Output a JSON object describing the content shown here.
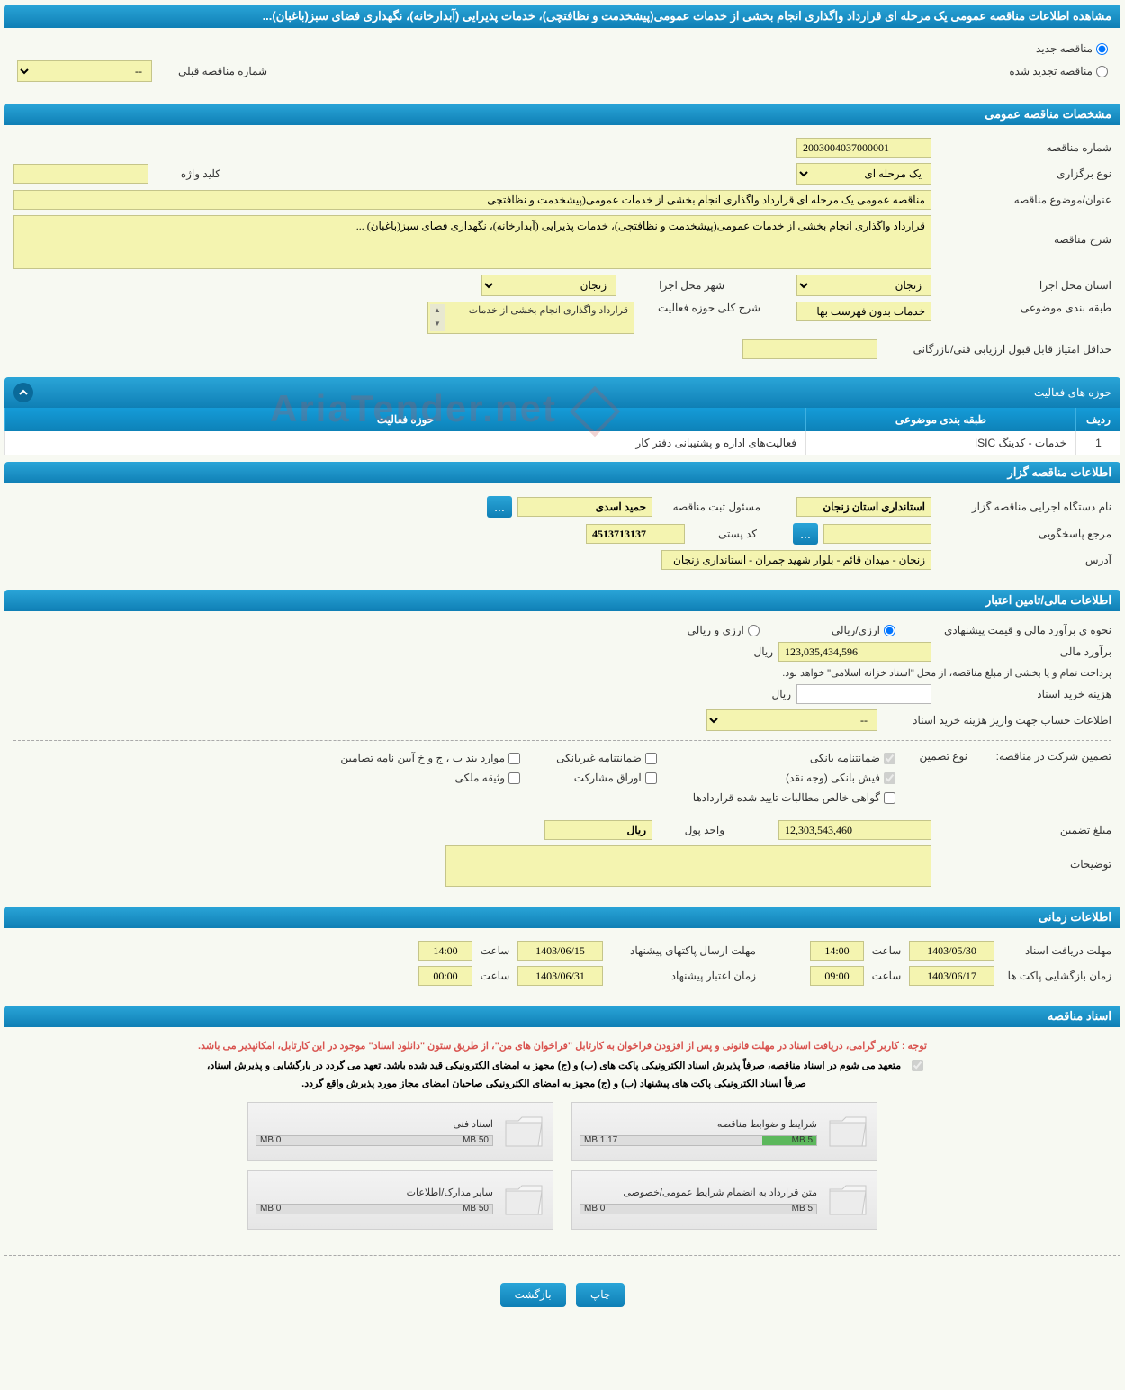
{
  "page": {
    "title": "مشاهده اطلاعات مناقصه عمومی یک مرحله ای قرارداد واگذاری انجام بخشی از خدمات عمومی(پیشخدمت و نظافتچی)، خدمات پذیرایی (آبدارخانه)، نگهداری فضای سبز(باغبان)..."
  },
  "top_radios": {
    "new_tender": "مناقصه جدید",
    "renewed_tender": "مناقصه تجدید شده",
    "prev_tender_label": "شماره مناقصه قبلی",
    "prev_tender_value": "--"
  },
  "sections": {
    "general": "مشخصات مناقصه عمومی",
    "activity_areas": "حوزه های فعالیت",
    "organizer": "اطلاعات مناقصه گزار",
    "financial": "اطلاعات مالی/تامین اعتبار",
    "timing": "اطلاعات زمانی",
    "documents": "اسناد مناقصه"
  },
  "general": {
    "tender_no_label": "شماره مناقصه",
    "tender_no": "2003004037000001",
    "type_label": "نوع برگزاری",
    "type_value": "یک مرحله ای",
    "keyword_label": "کلید واژه",
    "keyword_value": "",
    "subject_label": "عنوان/موضوع مناقصه",
    "subject_value": "مناقصه عمومی یک مرحله ای قرارداد واگذاری انجام بخشی از خدمات عمومی(پیشخدمت و نظافتچی",
    "desc_label": "شرح مناقصه",
    "desc_value": "قرارداد واگذاری انجام بخشی از خدمات عمومی(پیشخدمت و نظافتچی)، خدمات پذیرایی (آبدارخانه)، نگهداری فضای سبز(باغبان) ...",
    "province_label": "استان محل اجرا",
    "province_value": "زنجان",
    "city_label": "شهر محل اجرا",
    "city_value": "زنجان",
    "class_label": "طبقه بندی موضوعی",
    "class_value": "خدمات بدون فهرست بها",
    "activity_desc_label": "شرح کلی حوزه فعالیت",
    "activity_desc_value": "قرارداد واگذاری انجام بخشی از خدمات",
    "min_score_label": "حداقل امتیاز قابل قبول ارزیابی فنی/بازرگانی",
    "min_score_value": ""
  },
  "activity_table": {
    "col_idx": "ردیف",
    "col_cat": "طبقه بندی موضوعی",
    "col_area": "حوزه فعالیت",
    "rows": [
      {
        "idx": "1",
        "cat": "خدمات - کدینگ ISIC",
        "area": "فعالیت‌های  اداره و پشتیبانی دفتر کار"
      }
    ]
  },
  "organizer": {
    "org_label": "نام دستگاه اجرایی مناقصه گزار",
    "org_value": "استانداری استان زنجان",
    "responsible_label": "مسئول ثبت مناقصه",
    "responsible_value": "حمید اسدی",
    "response_ref_label": "مرجع پاسخگویی",
    "response_ref_value": "",
    "postal_label": "کد پستی",
    "postal_value": "4513713137",
    "address_label": "آدرس",
    "address_value": "زنجان - میدان قائم - بلوار شهید چمران - استانداری زنجان"
  },
  "financial": {
    "estimate_type_label": "نحوه ی برآورد مالی و قیمت پیشنهادی",
    "radio_rial": "ارزی/ریالی",
    "radio_both": "ارزی و ریالی",
    "estimate_label": "برآورد مالی",
    "estimate_value": "123,035,434,596",
    "unit_rial": "ریال",
    "note": "پرداخت تمام و یا بخشی از مبلغ مناقصه، از محل \"اسناد خزانه اسلامی\" خواهد بود.",
    "doc_cost_label": "هزینه خرید اسناد",
    "doc_cost_value": "",
    "acct_info_label": "اطلاعات حساب جهت واریز هزینه خرید اسناد",
    "acct_info_value": "--",
    "guarantee_label": "تضمین شرکت در مناقصه:",
    "guarantee_type_label": "نوع تضمین",
    "chk_bank_guarantee": "ضمانتنامه بانکی",
    "chk_nonbank_guarantee": "ضمانتنامه غیربانکی",
    "chk_appendix": "موارد بند ب ، ج و خ آیین نامه تضامین",
    "chk_bank_receipt": "فیش بانکی (وجه نقد)",
    "chk_securities": "اوراق مشارکت",
    "chk_property": "وثیقه ملکی",
    "chk_net_claims": "گواهی خالص مطالبات تایید شده قراردادها",
    "guarantee_amount_label": "مبلغ تضمین",
    "guarantee_amount_value": "12,303,543,460",
    "money_unit_label": "واحد پول",
    "money_unit_value": "ریال",
    "remarks_label": "توضیحات",
    "remarks_value": ""
  },
  "timing": {
    "doc_receive_label": "مهلت دریافت اسناد",
    "doc_receive_date": "1403/05/30",
    "time_label": "ساعت",
    "doc_receive_time": "14:00",
    "proposal_send_label": "مهلت ارسال پاکتهای پیشنهاد",
    "proposal_send_date": "1403/06/15",
    "proposal_send_time": "14:00",
    "envelope_open_label": "زمان بازگشایی پاکت ها",
    "envelope_open_date": "1403/06/17",
    "envelope_open_time": "09:00",
    "validity_label": "زمان اعتبار پیشنهاد",
    "validity_date": "1403/06/31",
    "validity_time": "00:00"
  },
  "docs": {
    "notice_red": "توجه : کاربر گرامی، دریافت اسناد در مهلت قانونی و پس از افزودن فراخوان به کارتابل \"فراخوان های من\"، از طریق ستون \"دانلود اسناد\" موجود در این کارتابل، امکانپذیر می باشد.",
    "notice_blk1": "متعهد می شوم در اسناد مناقصه، صرفاً پذیرش اسناد الکترونیکی پاکت های (ب) و (ج) مجهز به امضای الکترونیکی قید شده باشد. تعهد می گردد در بارگشایی و پذیرش اسناد،",
    "notice_blk2": "صرفاً اسناد الکترونیکی پاکت های پیشنهاد (ب) و (ج) مجهز به امضای الکترونیکی صاحبان امضای مجاز مورد پذیرش واقع گردد.",
    "boxes": [
      {
        "title": "شرایط و ضوابط مناقصه",
        "used": "1.17 MB",
        "total": "5 MB",
        "fill_pct": 23,
        "fill_color": "#5cb85c"
      },
      {
        "title": "اسناد فنی",
        "used": "0 MB",
        "total": "50 MB",
        "fill_pct": 0,
        "fill_color": "#5cb85c"
      },
      {
        "title": "متن قرارداد به انضمام شرایط عمومی/خصوصی",
        "used": "0 MB",
        "total": "5 MB",
        "fill_pct": 0,
        "fill_color": "#5cb85c"
      },
      {
        "title": "سایر مدارک/اطلاعات",
        "used": "0 MB",
        "total": "50 MB",
        "fill_pct": 0,
        "fill_color": "#5cb85c"
      }
    ]
  },
  "buttons": {
    "print": "چاپ",
    "back": "بازگشت"
  },
  "watermark": "AriaTender.net",
  "colors": {
    "header_grad_top": "#2aa5d8",
    "header_grad_bot": "#0f7fb5",
    "yellow_bg": "#f4f4b0",
    "page_bg": "#f7f9f2"
  }
}
